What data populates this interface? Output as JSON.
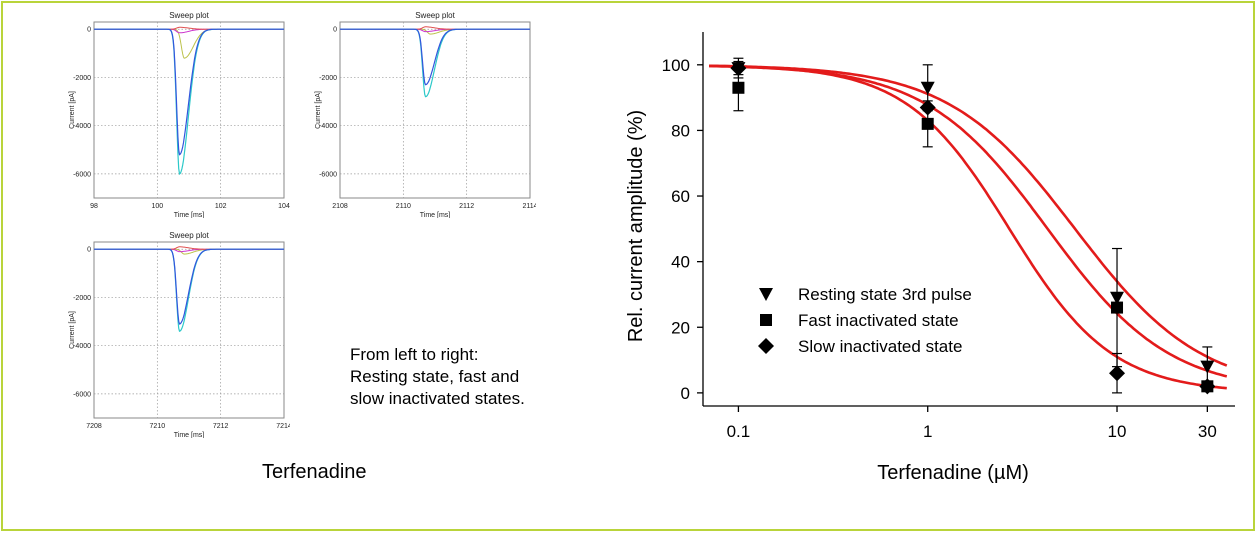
{
  "caption": {
    "lines": [
      "From left to right:",
      "Resting state, fast and",
      "slow inactivated states."
    ],
    "drug": "Terfenadine"
  },
  "colors": {
    "frame": "#b9d43a",
    "fit_curve": "#e31b1b",
    "trace_blue": "#3355dd",
    "trace_cyan": "#2cc9c9",
    "trace_olive": "#bcc24a",
    "trace_magenta": "#cc33cc",
    "trace_red": "#e05050"
  },
  "sweep_plots": [
    {
      "title": "Sweep plot",
      "xlabel": "Time [ms]",
      "ylabel": "Current [pA]",
      "xlim": [
        98,
        104
      ],
      "xticks": [
        "98",
        "100",
        "102",
        "104"
      ],
      "yticks": [
        "0",
        "-2000",
        "-4000",
        "-6000"
      ],
      "ylim": [
        -7000,
        300
      ],
      "peak_time": 100.7,
      "peaks": [
        -6000,
        -5200,
        -1200,
        -150,
        80
      ]
    },
    {
      "title": "Sweep plot",
      "xlabel": "Time [ms]",
      "ylabel": "Current [pA]",
      "xlim": [
        2108,
        2114
      ],
      "xticks": [
        "2108",
        "2110",
        "2112",
        "2114"
      ],
      "yticks": [
        "0",
        "-2000",
        "-4000",
        "-6000"
      ],
      "ylim": [
        -7000,
        300
      ],
      "peak_time": 2110.7,
      "peaks": [
        -2800,
        -2300,
        -200,
        -100,
        100
      ]
    },
    {
      "title": "Sweep plot",
      "xlabel": "Time [ms]",
      "ylabel": "Current [pA]",
      "xlim": [
        7208,
        7214
      ],
      "xticks": [
        "7208",
        "7210",
        "7212",
        "7214"
      ],
      "yticks": [
        "0",
        "-2000",
        "-4000",
        "-6000"
      ],
      "ylim": [
        -7000,
        300
      ],
      "peak_time": 7210.7,
      "peaks": [
        -3400,
        -3100,
        -200,
        -100,
        100
      ]
    }
  ],
  "chart_data": {
    "type": "scatter",
    "xlabel": "Terfenadine (µM)",
    "ylabel": "Rel. current amplitude (%)",
    "x_scale": "log",
    "xlim": [
      0.065,
      42
    ],
    "ylim": [
      -4,
      110
    ],
    "xticks": [
      {
        "value": 0.1,
        "label": "0.1"
      },
      {
        "value": 1,
        "label": "1"
      },
      {
        "value": 10,
        "label": "10"
      },
      {
        "value": 30,
        "label": "30"
      }
    ],
    "yticks": [
      0,
      20,
      40,
      60,
      80,
      100
    ],
    "legend_position": "lower-left",
    "series": [
      {
        "name": "Resting state 3rd pulse",
        "marker": "triangle-down",
        "x": [
          0.1,
          1,
          10,
          30
        ],
        "y": [
          99,
          93,
          29,
          8
        ],
        "err": [
          2,
          7,
          0,
          6
        ],
        "fit": {
          "ic50": 6.0,
          "hill": 1.3
        }
      },
      {
        "name": "Fast inactivated state",
        "marker": "square",
        "x": [
          0.1,
          1,
          10,
          30
        ],
        "y": [
          93,
          82,
          26,
          2
        ],
        "err": [
          7,
          7,
          18,
          0
        ],
        "fit": {
          "ic50": 4.3,
          "hill": 1.35
        }
      },
      {
        "name": "Slow inactivated state",
        "marker": "diamond",
        "x": [
          0.1,
          1,
          10,
          30
        ],
        "y": [
          99,
          87,
          6,
          2
        ],
        "err": [
          3,
          0,
          6,
          0
        ],
        "fit": {
          "ic50": 2.7,
          "hill": 1.6
        }
      }
    ]
  }
}
